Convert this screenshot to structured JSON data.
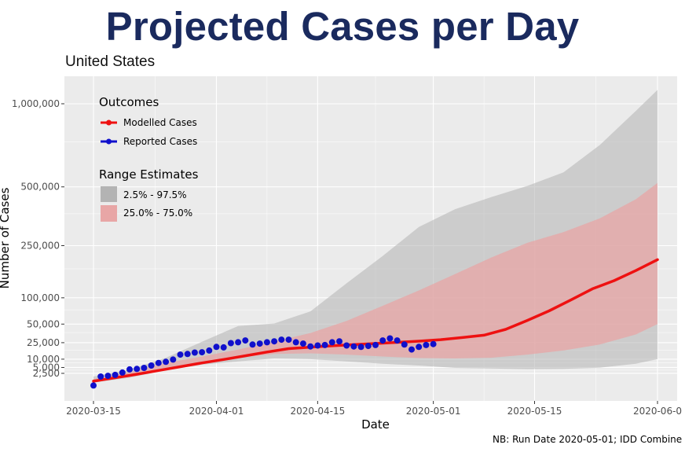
{
  "title": "Projected Cases per Day",
  "chart_data": {
    "type": "line",
    "subtitle": "United States",
    "xlabel": "Date",
    "ylabel": "Number of Cases",
    "caption": "NB: Run Date 2020-05-01; IDD Combine",
    "x_ticks": [
      "2020-03-15",
      "2020-04-01",
      "2020-04-15",
      "2020-05-01",
      "2020-05-15",
      "2020-06-0"
    ],
    "y_ticks": [
      {
        "value": 2500,
        "label": "2,500"
      },
      {
        "value": 5000,
        "label": "5,000"
      },
      {
        "value": 10000,
        "label": "10,000"
      },
      {
        "value": 25000,
        "label": "25,000"
      },
      {
        "value": 50000,
        "label": "50,000"
      },
      {
        "value": 100000,
        "label": "100,000"
      },
      {
        "value": 250000,
        "label": "250,000"
      },
      {
        "value": 500000,
        "label": "500,000"
      },
      {
        "value": 1000000,
        "label": "1,000,000"
      }
    ],
    "y_scale": "square-root",
    "xlim": [
      "2020-03-12",
      "2020-06-01"
    ],
    "ylim": [
      0,
      1180000
    ],
    "grid": true,
    "legend_position": "top-left",
    "legend": {
      "outcomes_title": "Outcomes",
      "outcomes": [
        {
          "label": "Modelled Cases",
          "color": "#ee1111"
        },
        {
          "label": "Reported Cases",
          "color": "#1010cc"
        }
      ],
      "range_title": "Range Estimates",
      "ranges": [
        {
          "label": "2.5% - 97.5%",
          "color": "#b3b3b3"
        },
        {
          "label": "25.0% - 75.0%",
          "color": "#e8a6a6"
        }
      ]
    },
    "series": [
      {
        "name": "Modelled Cases",
        "color": "#ee1111",
        "points": [
          [
            "2020-03-15",
            500
          ],
          [
            "2020-03-18",
            1200
          ],
          [
            "2020-03-21",
            2200
          ],
          [
            "2020-03-24",
            3600
          ],
          [
            "2020-03-27",
            5400
          ],
          [
            "2020-03-30",
            7500
          ],
          [
            "2020-04-02",
            9800
          ],
          [
            "2020-04-05",
            12500
          ],
          [
            "2020-04-08",
            15700
          ],
          [
            "2020-04-11",
            18800
          ],
          [
            "2020-04-14",
            20300
          ],
          [
            "2020-04-17",
            21600
          ],
          [
            "2020-04-20",
            22900
          ],
          [
            "2020-04-23",
            24100
          ],
          [
            "2020-04-26",
            25400
          ],
          [
            "2020-04-29",
            26700
          ],
          [
            "2020-05-02",
            28500
          ],
          [
            "2020-05-05",
            31000
          ],
          [
            "2020-05-08",
            34000
          ],
          [
            "2020-05-11",
            42000
          ],
          [
            "2020-05-14",
            56000
          ],
          [
            "2020-05-17",
            73000
          ],
          [
            "2020-05-20",
            95000
          ],
          [
            "2020-05-23",
            121000
          ],
          [
            "2020-05-26",
            142000
          ],
          [
            "2020-05-29",
            170000
          ],
          [
            "2020-06-01",
            203000
          ]
        ]
      },
      {
        "name": "Reported Cases",
        "color": "#1010cc",
        "points": [
          [
            "2020-03-15",
            50
          ],
          [
            "2020-03-16",
            1500
          ],
          [
            "2020-03-17",
            1700
          ],
          [
            "2020-03-18",
            2000
          ],
          [
            "2020-03-19",
            2800
          ],
          [
            "2020-03-20",
            4100
          ],
          [
            "2020-03-21",
            4300
          ],
          [
            "2020-03-22",
            4800
          ],
          [
            "2020-03-23",
            6000
          ],
          [
            "2020-03-24",
            7500
          ],
          [
            "2020-03-25",
            8200
          ],
          [
            "2020-03-26",
            9700
          ],
          [
            "2020-03-27",
            13500
          ],
          [
            "2020-03-28",
            14000
          ],
          [
            "2020-03-29",
            15200
          ],
          [
            "2020-03-30",
            15500
          ],
          [
            "2020-03-31",
            17000
          ],
          [
            "2020-04-01",
            20500
          ],
          [
            "2020-04-02",
            20000
          ],
          [
            "2020-04-03",
            24500
          ],
          [
            "2020-04-04",
            25500
          ],
          [
            "2020-04-05",
            27500
          ],
          [
            "2020-04-06",
            23000
          ],
          [
            "2020-04-07",
            24000
          ],
          [
            "2020-04-08",
            25500
          ],
          [
            "2020-04-09",
            26500
          ],
          [
            "2020-04-10",
            28500
          ],
          [
            "2020-04-11",
            28500
          ],
          [
            "2020-04-12",
            25500
          ],
          [
            "2020-04-13",
            24000
          ],
          [
            "2020-04-14",
            21000
          ],
          [
            "2020-04-15",
            22000
          ],
          [
            "2020-04-16",
            22500
          ],
          [
            "2020-04-17",
            25500
          ],
          [
            "2020-04-18",
            26500
          ],
          [
            "2020-04-19",
            22000
          ],
          [
            "2020-04-20",
            21000
          ],
          [
            "2020-04-21",
            20500
          ],
          [
            "2020-04-22",
            21500
          ],
          [
            "2020-04-23",
            22500
          ],
          [
            "2020-04-24",
            27500
          ],
          [
            "2020-04-25",
            30000
          ],
          [
            "2020-04-26",
            27500
          ],
          [
            "2020-04-27",
            23000
          ],
          [
            "2020-04-28",
            18000
          ],
          [
            "2020-04-29",
            20500
          ],
          [
            "2020-04-30",
            22500
          ],
          [
            "2020-05-01",
            23500
          ]
        ]
      }
    ],
    "bands": [
      {
        "name": "2.5% - 97.5%",
        "color": "#b3b3b3",
        "points": [
          [
            "2020-03-15",
            300,
            1500
          ],
          [
            "2020-03-20",
            1200,
            4000
          ],
          [
            "2020-03-25",
            3800,
            11000
          ],
          [
            "2020-03-30",
            6500,
            26000
          ],
          [
            "2020-04-04",
            8500,
            47000
          ],
          [
            "2020-04-09",
            10500,
            51000
          ],
          [
            "2020-04-14",
            10000,
            72000
          ],
          [
            "2020-04-19",
            8500,
            135000
          ],
          [
            "2020-04-24",
            7000,
            215000
          ],
          [
            "2020-04-29",
            6000,
            320000
          ],
          [
            "2020-05-04",
            4800,
            395000
          ],
          [
            "2020-05-09",
            4500,
            450000
          ],
          [
            "2020-05-14",
            4200,
            505000
          ],
          [
            "2020-05-19",
            4300,
            575000
          ],
          [
            "2020-05-24",
            4900,
            730000
          ],
          [
            "2020-05-29",
            7000,
            950000
          ],
          [
            "2020-06-01",
            10000,
            1100000
          ]
        ]
      },
      {
        "name": "25.0% - 75.0%",
        "color": "#e8a6a6",
        "points": [
          [
            "2020-03-15",
            400,
            900
          ],
          [
            "2020-03-20",
            1400,
            3000
          ],
          [
            "2020-03-25",
            4000,
            7500
          ],
          [
            "2020-03-30",
            7500,
            12000
          ],
          [
            "2020-04-04",
            11000,
            18000
          ],
          [
            "2020-04-09",
            14000,
            26000
          ],
          [
            "2020-04-14",
            14500,
            37000
          ],
          [
            "2020-04-19",
            13500,
            55000
          ],
          [
            "2020-04-24",
            12000,
            83000
          ],
          [
            "2020-04-29",
            10800,
            117000
          ],
          [
            "2020-05-04",
            10500,
            160000
          ],
          [
            "2020-05-09",
            11000,
            210000
          ],
          [
            "2020-05-14",
            13500,
            260000
          ],
          [
            "2020-05-19",
            17000,
            300000
          ],
          [
            "2020-05-24",
            23000,
            355000
          ],
          [
            "2020-05-29",
            35000,
            440000
          ],
          [
            "2020-06-01",
            50000,
            520000
          ]
        ]
      }
    ]
  }
}
